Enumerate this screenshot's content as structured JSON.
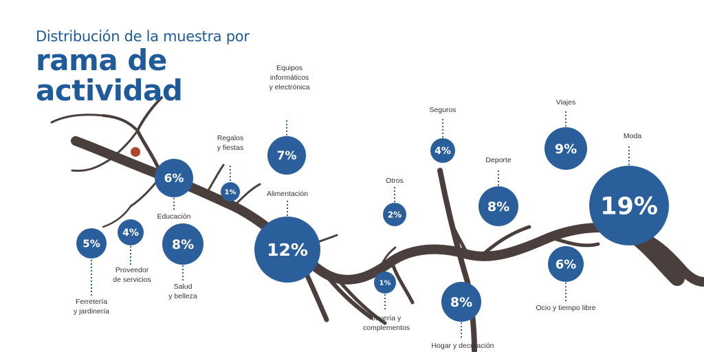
{
  "title": {
    "line1": "Distribución de la muestra por",
    "line2": "rama de",
    "line3": "actividad"
  },
  "colors": {
    "bubble": "#2b5f9c",
    "branch": "#4a3f3c",
    "title": "#1f5a9a",
    "label": "#333333",
    "fruit": "#b0452a"
  },
  "chart_data": {
    "type": "bubble",
    "title": "Distribución de la muestra por rama de actividad",
    "unit": "%",
    "items": [
      {
        "label": "Ferretería y jardinería",
        "value": 5,
        "display": "5%"
      },
      {
        "label": "Proveedor de servicios",
        "value": 4,
        "display": "4%"
      },
      {
        "label": "Educación",
        "value": 6,
        "display": "6%"
      },
      {
        "label": "Salud y belleza",
        "value": 8,
        "display": "8%"
      },
      {
        "label": "Regalos y fiestas",
        "value": 1,
        "display": "1%"
      },
      {
        "label": "Equipos informáticos y electrónica",
        "value": 7,
        "display": "7%"
      },
      {
        "label": "Alimentación",
        "value": 12,
        "display": "12%"
      },
      {
        "label": "Otros",
        "value": 2,
        "display": "2%"
      },
      {
        "label": "Joyería y complementos",
        "value": 1,
        "display": "1%"
      },
      {
        "label": "Seguros",
        "value": 4,
        "display": "4%"
      },
      {
        "label": "Hogar y decoración",
        "value": 8,
        "display": "8%"
      },
      {
        "label": "Deporte",
        "value": 8,
        "display": "8%"
      },
      {
        "label": "Viajes",
        "value": 9,
        "display": "9%"
      },
      {
        "label": "Ocio y tiempo libre",
        "value": 6,
        "display": "6%"
      },
      {
        "label": "Moda",
        "value": 19,
        "display": "19%"
      }
    ]
  }
}
